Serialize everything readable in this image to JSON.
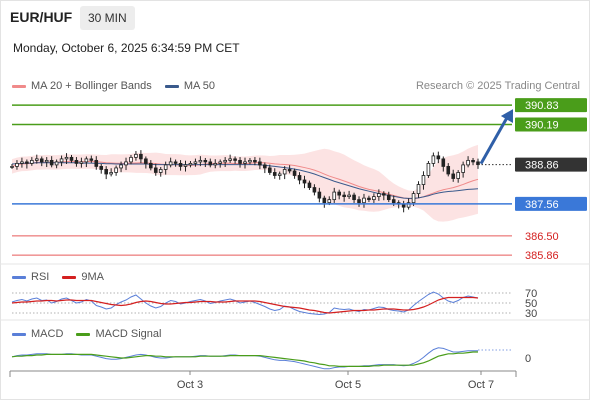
{
  "header": {
    "symbol": "EUR/HUF",
    "timeframe": "30 MIN",
    "datetime": "Monday, October 6, 2025 6:34:59 PM CET",
    "credit": "Research © 2025 Trading Central"
  },
  "colors": {
    "resistance": "#4a9d1a",
    "support": "#3a78d8",
    "target_red": "#e85a5a",
    "price_marker": "#333333",
    "ma20": "#f08a8a",
    "ma50": "#3a5a8c",
    "band_fill": "#fbd9d9",
    "arrow": "#2f5fa8",
    "rsi": "#5a7fd8",
    "rsi_ma": "#d42020",
    "macd": "#5a7fd8",
    "macd_signal": "#4a9d1a"
  },
  "legends": {
    "main": [
      {
        "label": "MA 20 + Bollinger Bands",
        "color": "#f08a8a"
      },
      {
        "label": "MA 50",
        "color": "#3a5a8c"
      }
    ],
    "rsi": [
      {
        "label": "RSI",
        "color": "#5a7fd8"
      },
      {
        "label": "9MA",
        "color": "#d42020"
      }
    ],
    "macd": [
      {
        "label": "MACD",
        "color": "#5a7fd8"
      },
      {
        "label": "MACD Signal",
        "color": "#4a9d1a"
      }
    ]
  },
  "chart_data": {
    "type": "candlestick",
    "x_labels": [
      "Oct 3",
      "Oct 5",
      "Oct 7"
    ],
    "y_range": [
      385.7,
      391.1
    ],
    "levels": [
      {
        "value": 390.83,
        "label": "390.83",
        "kind": "resistance"
      },
      {
        "value": 390.19,
        "label": "390.19",
        "kind": "resistance"
      },
      {
        "value": 388.86,
        "label": "388.86",
        "kind": "price"
      },
      {
        "value": 387.56,
        "label": "387.56",
        "kind": "support"
      },
      {
        "value": 386.5,
        "label": "386.50",
        "kind": "target"
      },
      {
        "value": 385.86,
        "label": "385.86",
        "kind": "target"
      }
    ],
    "close": [
      388.8,
      388.9,
      388.95,
      388.9,
      389.0,
      389.05,
      388.95,
      389.0,
      388.85,
      388.95,
      389.05,
      389.1,
      389.0,
      388.9,
      388.95,
      389.05,
      389.0,
      388.8,
      388.7,
      388.55,
      388.6,
      388.75,
      388.85,
      388.95,
      389.1,
      389.2,
      389.05,
      388.9,
      388.75,
      388.6,
      388.7,
      388.85,
      388.95,
      388.9,
      388.8,
      388.85,
      388.9,
      388.95,
      389.0,
      388.95,
      388.85,
      388.9,
      388.95,
      389.0,
      389.05,
      389.0,
      388.9,
      388.95,
      389.0,
      388.95,
      388.85,
      388.75,
      388.6,
      388.5,
      388.55,
      388.7,
      388.65,
      388.5,
      388.35,
      388.25,
      388.1,
      387.95,
      387.75,
      387.6,
      387.7,
      387.95,
      387.85,
      387.8,
      387.85,
      387.7,
      387.6,
      387.75,
      387.7,
      387.8,
      387.9,
      387.85,
      387.7,
      387.6,
      387.55,
      387.45,
      387.6,
      387.9,
      388.2,
      388.5,
      388.9,
      389.15,
      389.05,
      388.8,
      388.55,
      388.4,
      388.6,
      388.85,
      389.0,
      388.95,
      388.86
    ],
    "ma50": [
      388.88,
      388.89,
      388.9,
      388.91,
      388.91,
      388.92,
      388.92,
      388.92,
      388.92,
      388.92,
      388.92,
      388.92,
      388.92,
      388.92,
      388.91,
      388.91,
      388.91,
      388.9,
      388.9,
      388.89,
      388.89,
      388.88,
      388.88,
      388.88,
      388.88,
      388.88,
      388.88,
      388.88,
      388.87,
      388.86,
      388.86,
      388.86,
      388.86,
      388.86,
      388.86,
      388.86,
      388.86,
      388.86,
      388.86,
      388.86,
      388.86,
      388.86,
      388.86,
      388.86,
      388.86,
      388.86,
      388.86,
      388.86,
      388.86,
      388.86,
      388.85,
      388.84,
      388.82,
      388.8,
      388.78,
      388.76,
      388.74,
      388.71,
      388.68,
      388.64,
      388.6,
      388.55,
      388.49,
      388.43,
      388.37,
      388.31,
      388.26,
      388.21,
      388.16,
      388.11,
      388.06,
      388.02,
      387.98,
      387.94,
      387.9,
      387.87,
      387.84,
      387.81,
      387.78,
      387.75,
      387.74,
      387.74,
      387.76,
      387.79,
      387.83,
      387.88,
      387.92,
      387.95,
      387.97,
      387.98,
      388.0,
      388.02,
      388.04,
      388.05,
      388.06
    ],
    "rsi_levels": [
      70,
      50,
      30
    ],
    "rsi": [
      52,
      55,
      57,
      54,
      58,
      60,
      55,
      56,
      50,
      53,
      58,
      60,
      55,
      50,
      52,
      57,
      54,
      45,
      42,
      38,
      40,
      47,
      52,
      56,
      62,
      66,
      58,
      50,
      44,
      40,
      43,
      50,
      55,
      53,
      48,
      50,
      53,
      55,
      57,
      54,
      49,
      51,
      54,
      56,
      58,
      55,
      50,
      52,
      54,
      51,
      47,
      43,
      38,
      35,
      37,
      44,
      42,
      37,
      33,
      31,
      29,
      28,
      27,
      28,
      31,
      40,
      38,
      37,
      38,
      35,
      33,
      37,
      36,
      39,
      42,
      41,
      37,
      35,
      34,
      32,
      36,
      45,
      53,
      60,
      67,
      72,
      68,
      60,
      54,
      51,
      55,
      61,
      64,
      62,
      60
    ],
    "rsi_ma": [
      50,
      51,
      52,
      52,
      53,
      54,
      54,
      55,
      55,
      54,
      55,
      56,
      56,
      55,
      55,
      55,
      55,
      53,
      51,
      49,
      47,
      46,
      45,
      46,
      48,
      51,
      53,
      54,
      53,
      51,
      49,
      48,
      48,
      49,
      50,
      51,
      51,
      52,
      53,
      53,
      53,
      52,
      52,
      52,
      53,
      54,
      54,
      54,
      54,
      54,
      53,
      51,
      49,
      47,
      45,
      43,
      42,
      41,
      40,
      38,
      36,
      35,
      33,
      31,
      30,
      31,
      32,
      33,
      34,
      35,
      35,
      35,
      36,
      36,
      37,
      38,
      38,
      38,
      37,
      36,
      36,
      37,
      39,
      42,
      46,
      51,
      56,
      59,
      61,
      61,
      61,
      61,
      61,
      61,
      60
    ],
    "macd_zero": 0,
    "macd": [
      0.02,
      0.04,
      0.05,
      0.05,
      0.06,
      0.07,
      0.07,
      0.07,
      0.06,
      0.06,
      0.06,
      0.07,
      0.07,
      0.06,
      0.05,
      0.05,
      0.05,
      0.03,
      0.01,
      -0.01,
      -0.02,
      -0.02,
      -0.01,
      0.01,
      0.03,
      0.05,
      0.06,
      0.05,
      0.03,
      0.01,
      0.0,
      0.0,
      0.01,
      0.02,
      0.02,
      0.02,
      0.02,
      0.03,
      0.04,
      0.04,
      0.03,
      0.03,
      0.03,
      0.04,
      0.05,
      0.05,
      0.04,
      0.04,
      0.04,
      0.04,
      0.03,
      0.01,
      -0.01,
      -0.03,
      -0.04,
      -0.04,
      -0.05,
      -0.06,
      -0.08,
      -0.1,
      -0.12,
      -0.14,
      -0.16,
      -0.18,
      -0.18,
      -0.16,
      -0.15,
      -0.15,
      -0.14,
      -0.14,
      -0.14,
      -0.13,
      -0.13,
      -0.12,
      -0.11,
      -0.11,
      -0.11,
      -0.11,
      -0.12,
      -0.13,
      -0.12,
      -0.09,
      -0.05,
      0.01,
      0.08,
      0.14,
      0.17,
      0.16,
      0.13,
      0.1,
      0.1,
      0.11,
      0.12,
      0.12,
      0.12
    ],
    "macd_signal": [
      0.02,
      0.03,
      0.03,
      0.04,
      0.04,
      0.05,
      0.05,
      0.06,
      0.06,
      0.06,
      0.06,
      0.06,
      0.06,
      0.06,
      0.06,
      0.06,
      0.06,
      0.05,
      0.04,
      0.03,
      0.02,
      0.01,
      0.0,
      0.0,
      0.01,
      0.02,
      0.03,
      0.04,
      0.04,
      0.03,
      0.03,
      0.02,
      0.02,
      0.02,
      0.02,
      0.02,
      0.02,
      0.02,
      0.03,
      0.03,
      0.03,
      0.03,
      0.03,
      0.03,
      0.04,
      0.04,
      0.04,
      0.04,
      0.04,
      0.04,
      0.04,
      0.03,
      0.02,
      0.01,
      -0.0,
      -0.01,
      -0.02,
      -0.03,
      -0.04,
      -0.05,
      -0.07,
      -0.08,
      -0.1,
      -0.11,
      -0.13,
      -0.13,
      -0.14,
      -0.14,
      -0.14,
      -0.14,
      -0.14,
      -0.14,
      -0.14,
      -0.13,
      -0.13,
      -0.12,
      -0.12,
      -0.12,
      -0.12,
      -0.12,
      -0.12,
      -0.12,
      -0.1,
      -0.08,
      -0.05,
      -0.01,
      0.03,
      0.05,
      0.07,
      0.07,
      0.08,
      0.08,
      0.09,
      0.1,
      0.1
    ]
  }
}
